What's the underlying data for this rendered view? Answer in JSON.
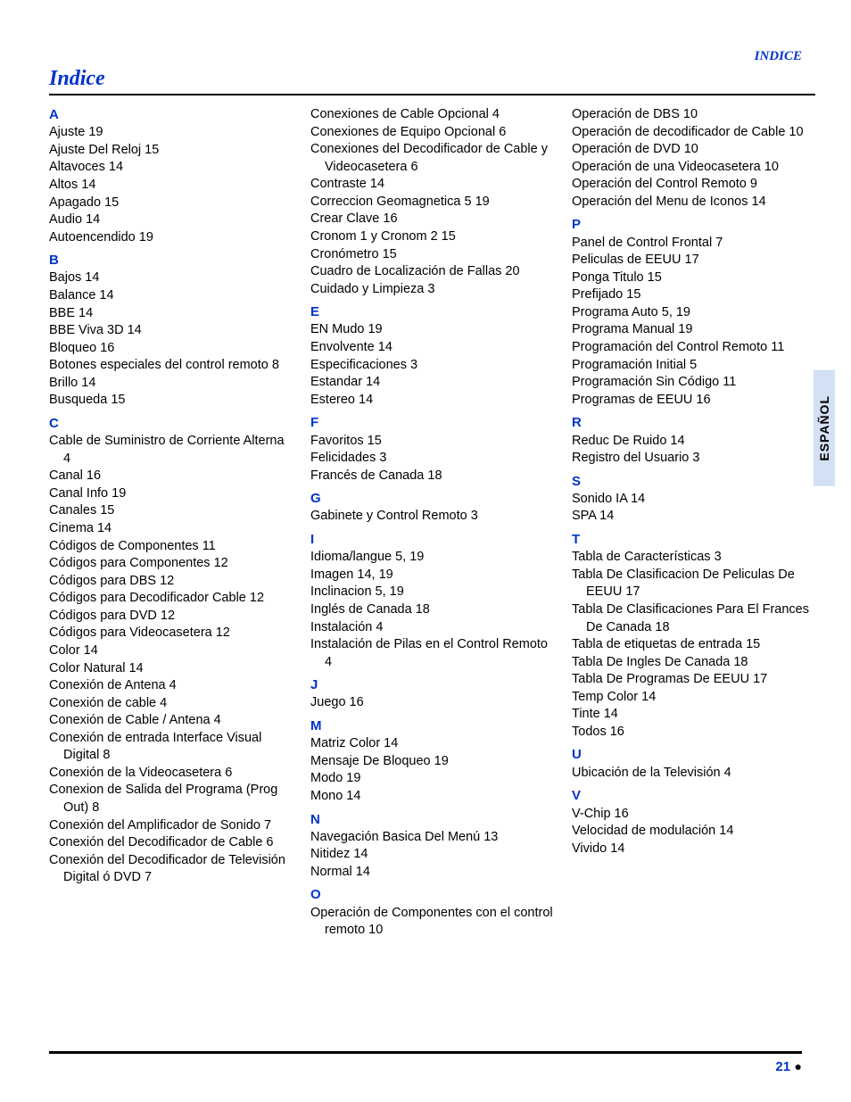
{
  "header": {
    "section_label": "INDICE"
  },
  "title": "Indice",
  "side_tab": "ESPAÑOL",
  "page_number": "21",
  "bullet": "●",
  "colors": {
    "accent": "#0033cc",
    "tab_bg": "#d4e0f4",
    "rule": "#000000",
    "text": "#000000"
  },
  "index": {
    "col1": [
      {
        "letter": "A"
      },
      {
        "text": "Ajuste 19"
      },
      {
        "text": "Ajuste Del Reloj 15"
      },
      {
        "text": "Altavoces 14"
      },
      {
        "text": "Altos 14"
      },
      {
        "text": "Apagado 15"
      },
      {
        "text": "Audio 14"
      },
      {
        "text": "Autoencendido 19"
      },
      {
        "letter": "B"
      },
      {
        "text": "Bajos 14"
      },
      {
        "text": "Balance 14"
      },
      {
        "text": "BBE 14"
      },
      {
        "text": "BBE Viva 3D 14"
      },
      {
        "text": "Bloqueo 16"
      },
      {
        "text": "Botones especiales del control remoto 8",
        "wrap": true
      },
      {
        "text": "Brillo 14"
      },
      {
        "text": "Busqueda 15"
      },
      {
        "letter": "C"
      },
      {
        "text": "Cable de Suministro de Corriente Alterna 4",
        "wrap": true
      },
      {
        "text": "Canal 16"
      },
      {
        "text": "Canal Info 19"
      },
      {
        "text": "Canales 15"
      },
      {
        "text": "Cinema 14"
      },
      {
        "text": "Códigos de Componentes 11"
      },
      {
        "text": "Códigos para Componentes 12"
      },
      {
        "text": "Códigos para DBS 12"
      },
      {
        "text": "Códigos para Decodificador Cable 12"
      },
      {
        "text": "Códigos para DVD 12"
      },
      {
        "text": "Códigos para Videocasetera 12"
      },
      {
        "text": "Color 14"
      },
      {
        "text": "Color Natural 14"
      },
      {
        "text": "Conexión de Antena 4"
      },
      {
        "text": "Conexión de cable 4"
      },
      {
        "text": "Conexión de Cable / Antena 4"
      },
      {
        "text": "Conexión de entrada Interface Visual Digital 8",
        "wrap": true
      },
      {
        "text": "Conexión de la Videocasetera 6"
      },
      {
        "text": "Conexion de Salida del Programa (Prog Out) 8",
        "wrap": true
      },
      {
        "text": "Conexión del Amplificador de Sonido 7",
        "wrap": true
      },
      {
        "text": "Conexión del Decodificador de Cable 6",
        "wrap": true
      },
      {
        "text": "Conexión del Decodificador de Televisión Digital ó DVD 7",
        "wrap": true
      }
    ],
    "col2": [
      {
        "text": "Conexiones de Cable Opcional 4"
      },
      {
        "text": "Conexiones de Equipo Opcional 6"
      },
      {
        "text": "Conexiones del Decodificador de Cable y Videocasetera 6",
        "wrap": true
      },
      {
        "text": "Contraste 14"
      },
      {
        "text": "Correccion Geomagnetica 5 19"
      },
      {
        "text": "Crear Clave 16"
      },
      {
        "text": "Cronom 1 y Cronom 2 15"
      },
      {
        "text": "Cronómetro 15"
      },
      {
        "text": "Cuadro de Localización de Fallas 20"
      },
      {
        "text": "Cuidado y Limpieza 3"
      },
      {
        "letter": "E"
      },
      {
        "text": "EN Mudo 19"
      },
      {
        "text": "Envolvente 14"
      },
      {
        "text": "Especificaciones 3"
      },
      {
        "text": "Estandar 14"
      },
      {
        "text": "Estereo 14"
      },
      {
        "letter": "F"
      },
      {
        "text": "Favoritos 15"
      },
      {
        "text": "Felicidades 3"
      },
      {
        "text": "Francés de Canada 18"
      },
      {
        "letter": "G"
      },
      {
        "text": "Gabinete y Control Remoto 3"
      },
      {
        "letter": "I"
      },
      {
        "text": "Idioma/langue 5, 19"
      },
      {
        "text": "Imagen 14, 19"
      },
      {
        "text": "Inclinacion 5, 19"
      },
      {
        "text": "Inglés de Canada 18"
      },
      {
        "text": "Instalación 4"
      },
      {
        "text": "Instalación de Pilas en el Control Remoto 4",
        "wrap": true
      },
      {
        "letter": "J"
      },
      {
        "text": "Juego 16"
      },
      {
        "letter": "M"
      },
      {
        "text": "Matriz Color 14"
      },
      {
        "text": "Mensaje De Bloqueo 19"
      },
      {
        "text": "Modo 19"
      },
      {
        "text": "Mono 14"
      },
      {
        "letter": "N"
      },
      {
        "text": "Navegación Basica Del Menú 13"
      },
      {
        "text": "Nitidez 14"
      },
      {
        "text": "Normal 14"
      },
      {
        "letter": "O"
      },
      {
        "text": "Operación de Componentes con el control remoto 10",
        "wrap": true
      }
    ],
    "col3": [
      {
        "text": "Operación de DBS 10"
      },
      {
        "text": "Operación de decodificador de Cable 10",
        "wrap": true
      },
      {
        "text": "Operación de DVD 10"
      },
      {
        "text": "Operación de una Videocasetera 10"
      },
      {
        "text": "Operación del Control Remoto 9"
      },
      {
        "text": "Operación del Menu de Iconos 14"
      },
      {
        "letter": "P"
      },
      {
        "text": "Panel de Control Frontal 7"
      },
      {
        "text": "Peliculas de EEUU 17"
      },
      {
        "text": "Ponga Titulo 15"
      },
      {
        "text": "Prefijado 15"
      },
      {
        "text": "Programa Auto 5, 19"
      },
      {
        "text": "Programa Manual 19"
      },
      {
        "text": "Programación del Control Remoto 11"
      },
      {
        "text": "Programación Initial 5"
      },
      {
        "text": "Programación Sin Código 11"
      },
      {
        "text": "Programas de EEUU 16"
      },
      {
        "letter": "R"
      },
      {
        "text": "Reduc De Ruido 14"
      },
      {
        "text": "Registro del Usuario 3"
      },
      {
        "letter": "S"
      },
      {
        "text": "Sonido IA 14"
      },
      {
        "text": "SPA 14"
      },
      {
        "letter": "T"
      },
      {
        "text": "Tabla de Características 3"
      },
      {
        "text": "Tabla De Clasificacion De Peliculas De EEUU 17",
        "wrap": true
      },
      {
        "text": "Tabla De Clasificaciones Para El Frances De Canada 18",
        "wrap": true
      },
      {
        "text": "Tabla de etiquetas de entrada 15"
      },
      {
        "text": "Tabla De Ingles De Canada 18"
      },
      {
        "text": "Tabla De Programas De EEUU 17"
      },
      {
        "text": "Temp Color 14"
      },
      {
        "text": "Tinte 14"
      },
      {
        "text": "Todos 16"
      },
      {
        "letter": "U"
      },
      {
        "text": "Ubicación de la Televisión 4"
      },
      {
        "letter": "V"
      },
      {
        "text": "V-Chip 16"
      },
      {
        "text": "Velocidad de modulación 14"
      },
      {
        "text": "Vivido 14"
      }
    ]
  }
}
